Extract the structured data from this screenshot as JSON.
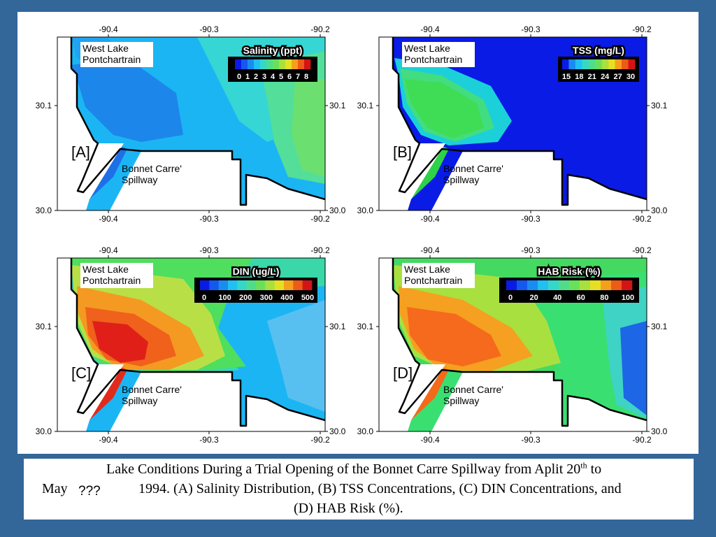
{
  "panels": [
    {
      "letter": "[A]",
      "title": "Salinity (ppt)",
      "ticks": [
        "0",
        "1",
        "2",
        "3",
        "4",
        "5",
        "6",
        "7",
        "8"
      ],
      "scheme": "salinity"
    },
    {
      "letter": "[B]",
      "title": "TSS (mg/L)",
      "ticks": [
        "15",
        "18",
        "21",
        "24",
        "27",
        "30"
      ],
      "scheme": "tss"
    },
    {
      "letter": "[C]",
      "title": "DIN (ug/L)",
      "ticks": [
        "0",
        "100",
        "200",
        "300",
        "400",
        "500"
      ],
      "scheme": "din"
    },
    {
      "letter": "[D]",
      "title": "HAB Risk (%)",
      "ticks": [
        "0",
        "20",
        "40",
        "60",
        "80",
        "100"
      ],
      "scheme": "hab"
    }
  ],
  "map_labels": {
    "lake_line1": "West Lake",
    "lake_line2": "Pontchartrain",
    "spillway_line1": "Bonnet Carre'",
    "spillway_line2": "Spillway"
  },
  "axes": {
    "x_ticks": [
      "-90.4",
      "-90.3",
      "-90.2"
    ],
    "y_ticks": [
      "30.1",
      "30.0"
    ]
  },
  "caption": {
    "line1_prefix": "Lake Conditions During a Trial Opening of the Bonnet Carre Spillway from Aplit 20",
    "line1_sup": "th",
    "line1_suffix": " to",
    "line2_start": "May",
    "line2_marks": "???",
    "line2_rest": "1994. (A) Salinity Distribution, (B) TSS Concentrations, (C) DIN Concentrations, and",
    "line3": "(D) HAB Risk (%)."
  },
  "colors": {
    "slide_background": "#336699",
    "panel_background": "#ffffff",
    "colorbar_background": "#000000"
  }
}
